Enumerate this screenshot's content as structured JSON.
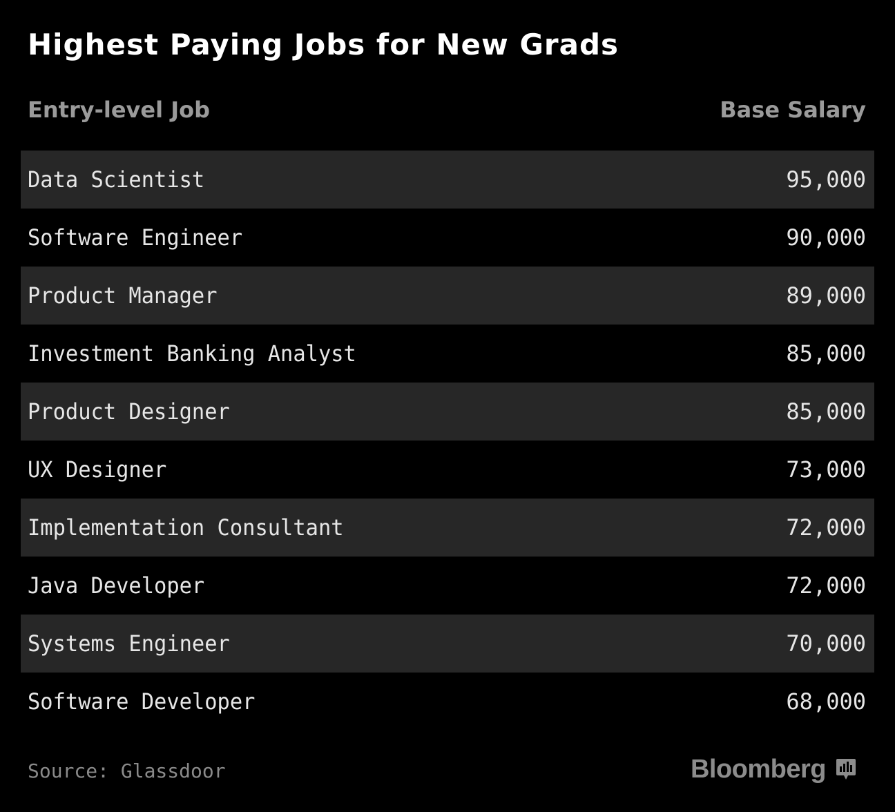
{
  "chart_data": {
    "type": "table",
    "title": "Highest Paying Jobs for New Grads",
    "columns": [
      "Entry-level Job",
      "Base Salary"
    ],
    "rows": [
      {
        "job": "Data Scientist",
        "salary": "95,000",
        "value": 95000
      },
      {
        "job": "Software Engineer",
        "salary": "90,000",
        "value": 90000
      },
      {
        "job": "Product Manager",
        "salary": "89,000",
        "value": 89000
      },
      {
        "job": "Investment Banking Analyst",
        "salary": "85,000",
        "value": 85000
      },
      {
        "job": "Product Designer",
        "salary": "85,000",
        "value": 85000
      },
      {
        "job": "UX Designer",
        "salary": "73,000",
        "value": 73000
      },
      {
        "job": "Implementation Consultant",
        "salary": "72,000",
        "value": 72000
      },
      {
        "job": "Java Developer",
        "salary": "72,000",
        "value": 72000
      },
      {
        "job": "Systems Engineer",
        "salary": "70,000",
        "value": 70000
      },
      {
        "job": "Software Developer",
        "salary": "68,000",
        "value": 68000
      }
    ]
  },
  "footer": {
    "source": "Source: Glassdoor",
    "brand": "Bloomberg",
    "brand_icon": "bloomberg-chart-icon"
  },
  "colors": {
    "background": "#000000",
    "row_shade": "#272727",
    "title": "#ffffff",
    "header_text": "#9a9a9a",
    "cell_text": "#e6e6e6",
    "footer_text": "#8a8a8a"
  }
}
